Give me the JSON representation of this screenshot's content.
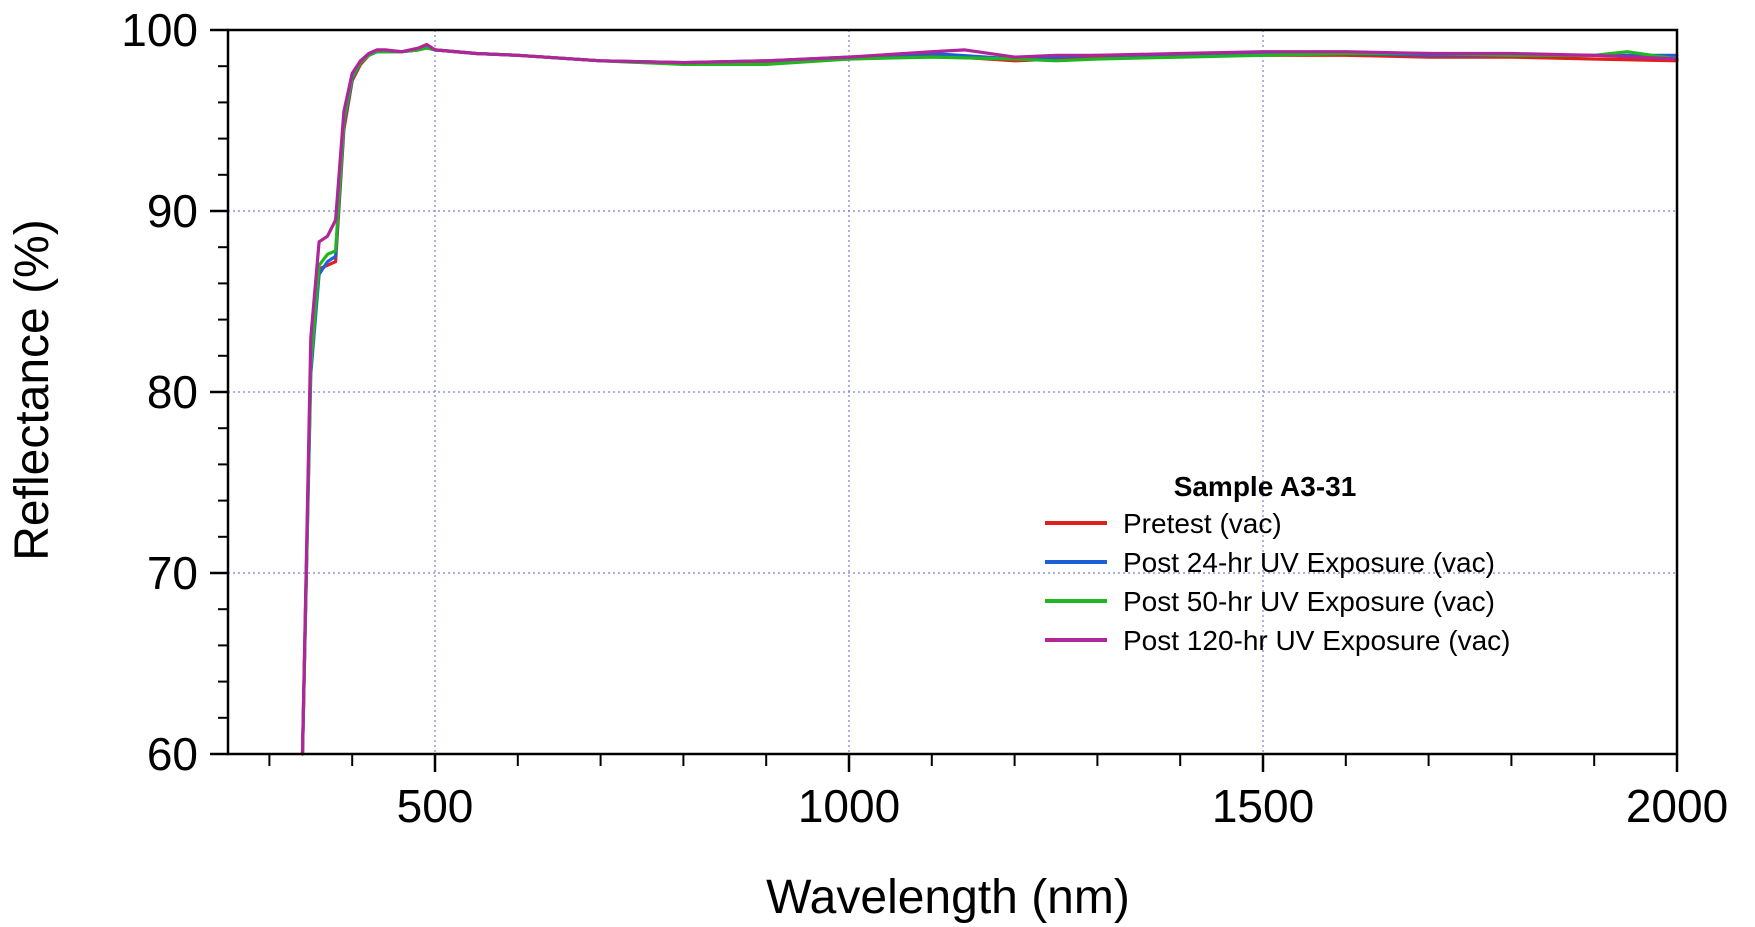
{
  "chart_data": {
    "type": "line",
    "xlabel": "Wavelength (nm)",
    "ylabel": "Reflectance (%)",
    "xlim": [
      250,
      2000
    ],
    "ylim": [
      60,
      100
    ],
    "x_ticks": [
      500,
      1000,
      1500,
      2000
    ],
    "y_ticks": [
      60,
      70,
      80,
      90,
      100
    ],
    "x_minor_step": 100,
    "grid": "dotted, major ticks",
    "legend": {
      "title": "Sample A3-31",
      "placement": "center-right"
    },
    "series": [
      {
        "name": "Pretest (vac)",
        "color": "#e0201a",
        "x": [
          340,
          350,
          360,
          370,
          380,
          390,
          400,
          410,
          420,
          430,
          440,
          460,
          480,
          490,
          500,
          550,
          600,
          700,
          800,
          900,
          1000,
          1100,
          1200,
          1250,
          1300,
          1400,
          1500,
          1600,
          1700,
          1800,
          1900,
          2000
        ],
        "y": [
          60,
          82,
          86.8,
          87,
          87.2,
          94.5,
          97.2,
          98.1,
          98.6,
          98.8,
          98.8,
          98.8,
          98.9,
          99.1,
          98.9,
          98.7,
          98.6,
          98.3,
          98.2,
          98.2,
          98.4,
          98.6,
          98.3,
          98.4,
          98.5,
          98.6,
          98.6,
          98.6,
          98.5,
          98.5,
          98.4,
          98.3
        ]
      },
      {
        "name": "Post 24-hr UV Exposure (vac)",
        "color": "#1d5fd6",
        "x": [
          340,
          350,
          360,
          370,
          380,
          390,
          400,
          410,
          420,
          430,
          440,
          460,
          480,
          490,
          500,
          550,
          600,
          700,
          800,
          900,
          1000,
          1100,
          1200,
          1250,
          1300,
          1400,
          1500,
          1600,
          1700,
          1800,
          1900,
          2000
        ],
        "y": [
          60,
          81,
          86.5,
          87.2,
          87.5,
          94.8,
          97.3,
          98.2,
          98.6,
          98.8,
          98.8,
          98.8,
          98.9,
          99.1,
          98.9,
          98.7,
          98.6,
          98.3,
          98.2,
          98.3,
          98.5,
          98.7,
          98.4,
          98.5,
          98.6,
          98.6,
          98.7,
          98.7,
          98.6,
          98.6,
          98.6,
          98.6
        ]
      },
      {
        "name": "Post 50-hr UV Exposure (vac)",
        "color": "#22b522",
        "x": [
          340,
          350,
          360,
          370,
          380,
          390,
          400,
          410,
          420,
          430,
          440,
          460,
          480,
          490,
          500,
          550,
          600,
          700,
          800,
          900,
          1000,
          1100,
          1200,
          1250,
          1300,
          1400,
          1500,
          1600,
          1700,
          1800,
          1900,
          1940,
          2000
        ],
        "y": [
          60,
          81.5,
          87,
          87.6,
          87.8,
          95,
          97.4,
          98.2,
          98.6,
          98.8,
          98.8,
          98.8,
          98.9,
          99.0,
          98.9,
          98.7,
          98.6,
          98.3,
          98.1,
          98.1,
          98.4,
          98.5,
          98.4,
          98.3,
          98.4,
          98.5,
          98.6,
          98.7,
          98.7,
          98.6,
          98.6,
          98.8,
          98.4
        ]
      },
      {
        "name": "Post 120-hr UV Exposure (vac)",
        "color": "#b0259a",
        "x": [
          340,
          350,
          360,
          370,
          380,
          390,
          400,
          410,
          420,
          430,
          440,
          460,
          480,
          490,
          500,
          550,
          600,
          700,
          800,
          900,
          1000,
          1100,
          1140,
          1200,
          1250,
          1300,
          1400,
          1500,
          1600,
          1700,
          1800,
          1900,
          2000
        ],
        "y": [
          60,
          83,
          88.3,
          88.6,
          89.5,
          95.5,
          97.6,
          98.3,
          98.7,
          98.9,
          98.9,
          98.8,
          99.0,
          99.2,
          98.9,
          98.7,
          98.6,
          98.3,
          98.2,
          98.3,
          98.5,
          98.8,
          98.9,
          98.5,
          98.6,
          98.6,
          98.7,
          98.8,
          98.8,
          98.7,
          98.7,
          98.6,
          98.4
        ]
      }
    ]
  }
}
